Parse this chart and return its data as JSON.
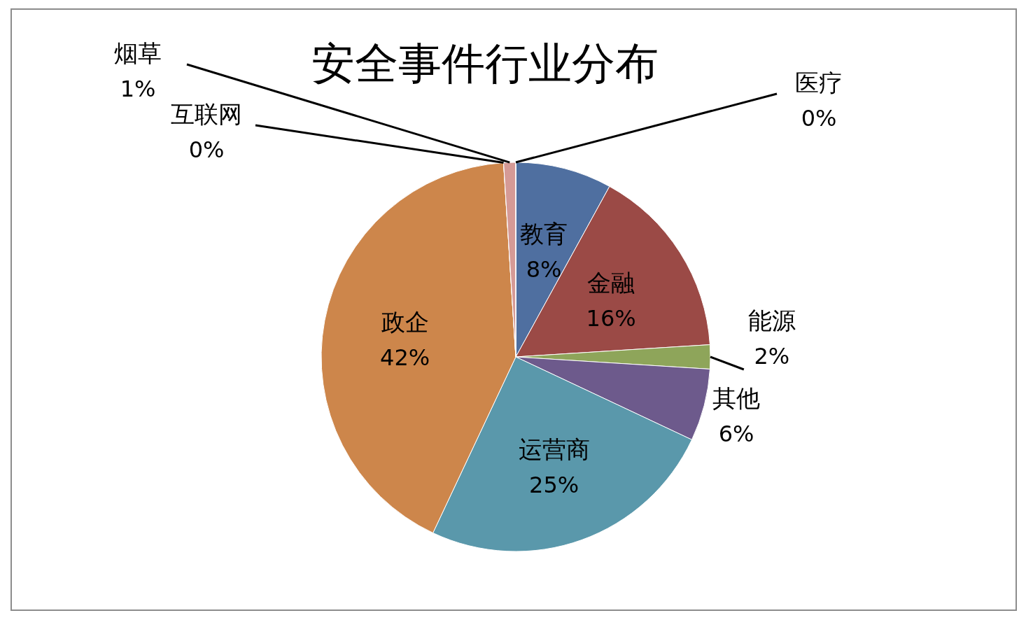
{
  "chart_data": {
    "type": "pie",
    "title": "安全事件行业分布",
    "categories": [
      "教育",
      "金融",
      "能源",
      "其他",
      "运营商",
      "政企",
      "互联网",
      "烟草",
      "医疗"
    ],
    "values": [
      8,
      16,
      2,
      6,
      25,
      42,
      0,
      1,
      0
    ],
    "value_labels": [
      "8%",
      "16%",
      "2%",
      "6%",
      "25%",
      "42%",
      "0%",
      "1%",
      "0%"
    ],
    "colors": [
      "#4f6fa0",
      "#9b4a46",
      "#8ea55a",
      "#6d5a8c",
      "#5a98ab",
      "#cd864b",
      "#9fb0d2",
      "#d59a96",
      "#c2d69b"
    ],
    "legend": false
  }
}
